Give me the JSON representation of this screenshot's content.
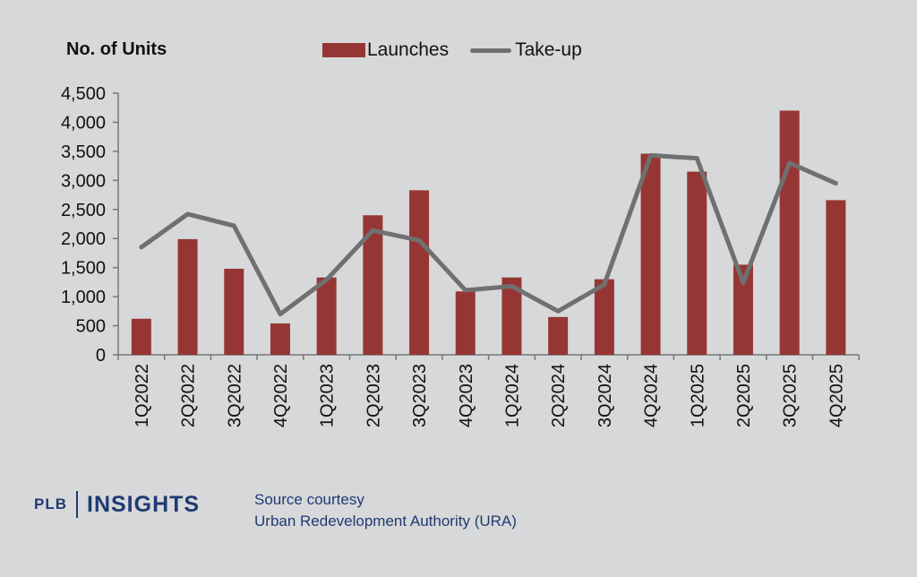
{
  "chart_data": {
    "type": "bar+line",
    "ylabel": "No. of Units",
    "ylim": [
      0,
      4500
    ],
    "yticks": [
      0,
      500,
      1000,
      1500,
      2000,
      2500,
      3000,
      3500,
      4000,
      4500
    ],
    "ytick_labels": [
      "0",
      "500",
      "1,000",
      "1,500",
      "2,000",
      "2,500",
      "3,000",
      "3,500",
      "4,000",
      "4,500"
    ],
    "categories": [
      "1Q2022",
      "2Q2022",
      "3Q2022",
      "4Q2022",
      "1Q2023",
      "2Q2023",
      "3Q2023",
      "4Q2023",
      "1Q2024",
      "2Q2024",
      "3Q2024",
      "4Q2024",
      "1Q2025",
      "2Q2025",
      "3Q2025",
      "4Q2025"
    ],
    "series": [
      {
        "name": "Launches",
        "type": "bar",
        "color": "#963634",
        "values": [
          620,
          1990,
          1480,
          540,
          1330,
          2400,
          2830,
          1090,
          1330,
          650,
          1300,
          3460,
          3150,
          1550,
          4200,
          2660
        ]
      },
      {
        "name": "Take-up",
        "type": "line",
        "color": "#707070",
        "values": [
          1850,
          2420,
          2220,
          700,
          1290,
          2140,
          1970,
          1110,
          1180,
          750,
          1210,
          3430,
          3380,
          1240,
          3300,
          2950
        ]
      }
    ],
    "legend": "top",
    "grid": false
  },
  "footer": {
    "logo_left": "PLB",
    "logo_right": "INSIGHTS",
    "source_line1": "Source courtesy",
    "source_line2": "Urban Redevelopment Authority (URA)"
  },
  "colors": {
    "background": "#d7d8d9",
    "brand": "#1f3a73"
  }
}
